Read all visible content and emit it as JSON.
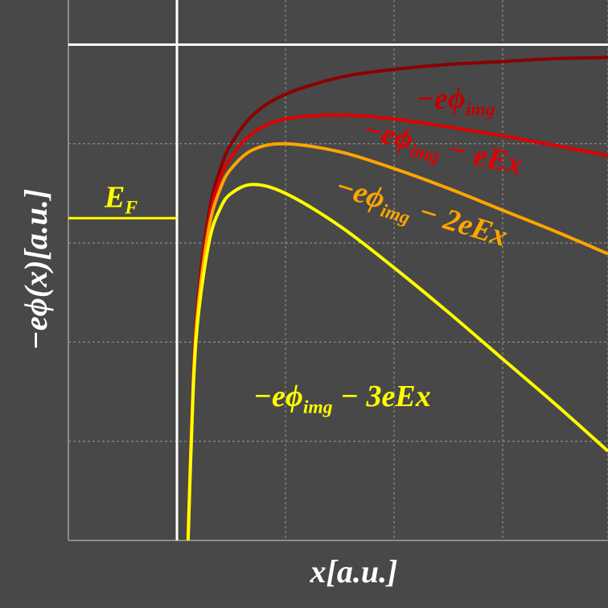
{
  "chart_data": {
    "type": "line",
    "xlabel": "x[a.u.]",
    "ylabel": "−eϕ(x)[a.u.]",
    "x": [
      0.1,
      0.15,
      0.2,
      0.3,
      0.4,
      0.5,
      0.7,
      1,
      1.5,
      2,
      2.5,
      3,
      3.5,
      3.97
    ],
    "series": [
      {
        "label": [
          "−eϕ",
          "img"
        ],
        "color": "#8b0000",
        "values": [
          -5,
          -3.33,
          -2.5,
          -1.67,
          -1.25,
          -1.0,
          -0.71,
          -0.5,
          -0.33,
          -0.25,
          -0.2,
          -0.17,
          -0.14,
          -0.13
        ]
      },
      {
        "label": [
          "−eϕ",
          "img",
          " − eEx"
        ],
        "color": "#e00000",
        "values": [
          -5.03,
          -3.37,
          -2.55,
          -1.74,
          -1.35,
          -1.13,
          -0.89,
          -0.75,
          -0.71,
          -0.75,
          -0.83,
          -0.92,
          -1.02,
          -1.12
        ]
      },
      {
        "label": [
          "−eϕ",
          "img",
          " − 2eEx"
        ],
        "color": "#ffa500",
        "values": [
          -5.05,
          -3.41,
          -2.6,
          -1.82,
          -1.45,
          -1.25,
          -1.06,
          -1.0,
          -1.08,
          -1.25,
          -1.45,
          -1.67,
          -1.89,
          -2.11
        ]
      },
      {
        "label": [
          "−eϕ",
          "img",
          " − 3eEx"
        ],
        "color": "#ffff00",
        "values": [
          -5.1,
          -3.48,
          -2.7,
          -1.97,
          -1.65,
          -1.5,
          -1.41,
          -1.5,
          -1.83,
          -2.25,
          -2.7,
          -3.17,
          -3.64,
          -4.1
        ]
      }
    ],
    "fermi_level": {
      "label": [
        "E",
        "F"
      ],
      "value": -1.75,
      "color": "#ffff00"
    },
    "vacuum_level": 0,
    "surface_x": 0,
    "xlim": [
      -1,
      3.97
    ],
    "ylim": [
      -5,
      0.45
    ],
    "xgrid": [
      0,
      1,
      2,
      3
    ],
    "ygrid": [
      -1,
      -2,
      -3,
      -4
    ],
    "grid": true
  }
}
